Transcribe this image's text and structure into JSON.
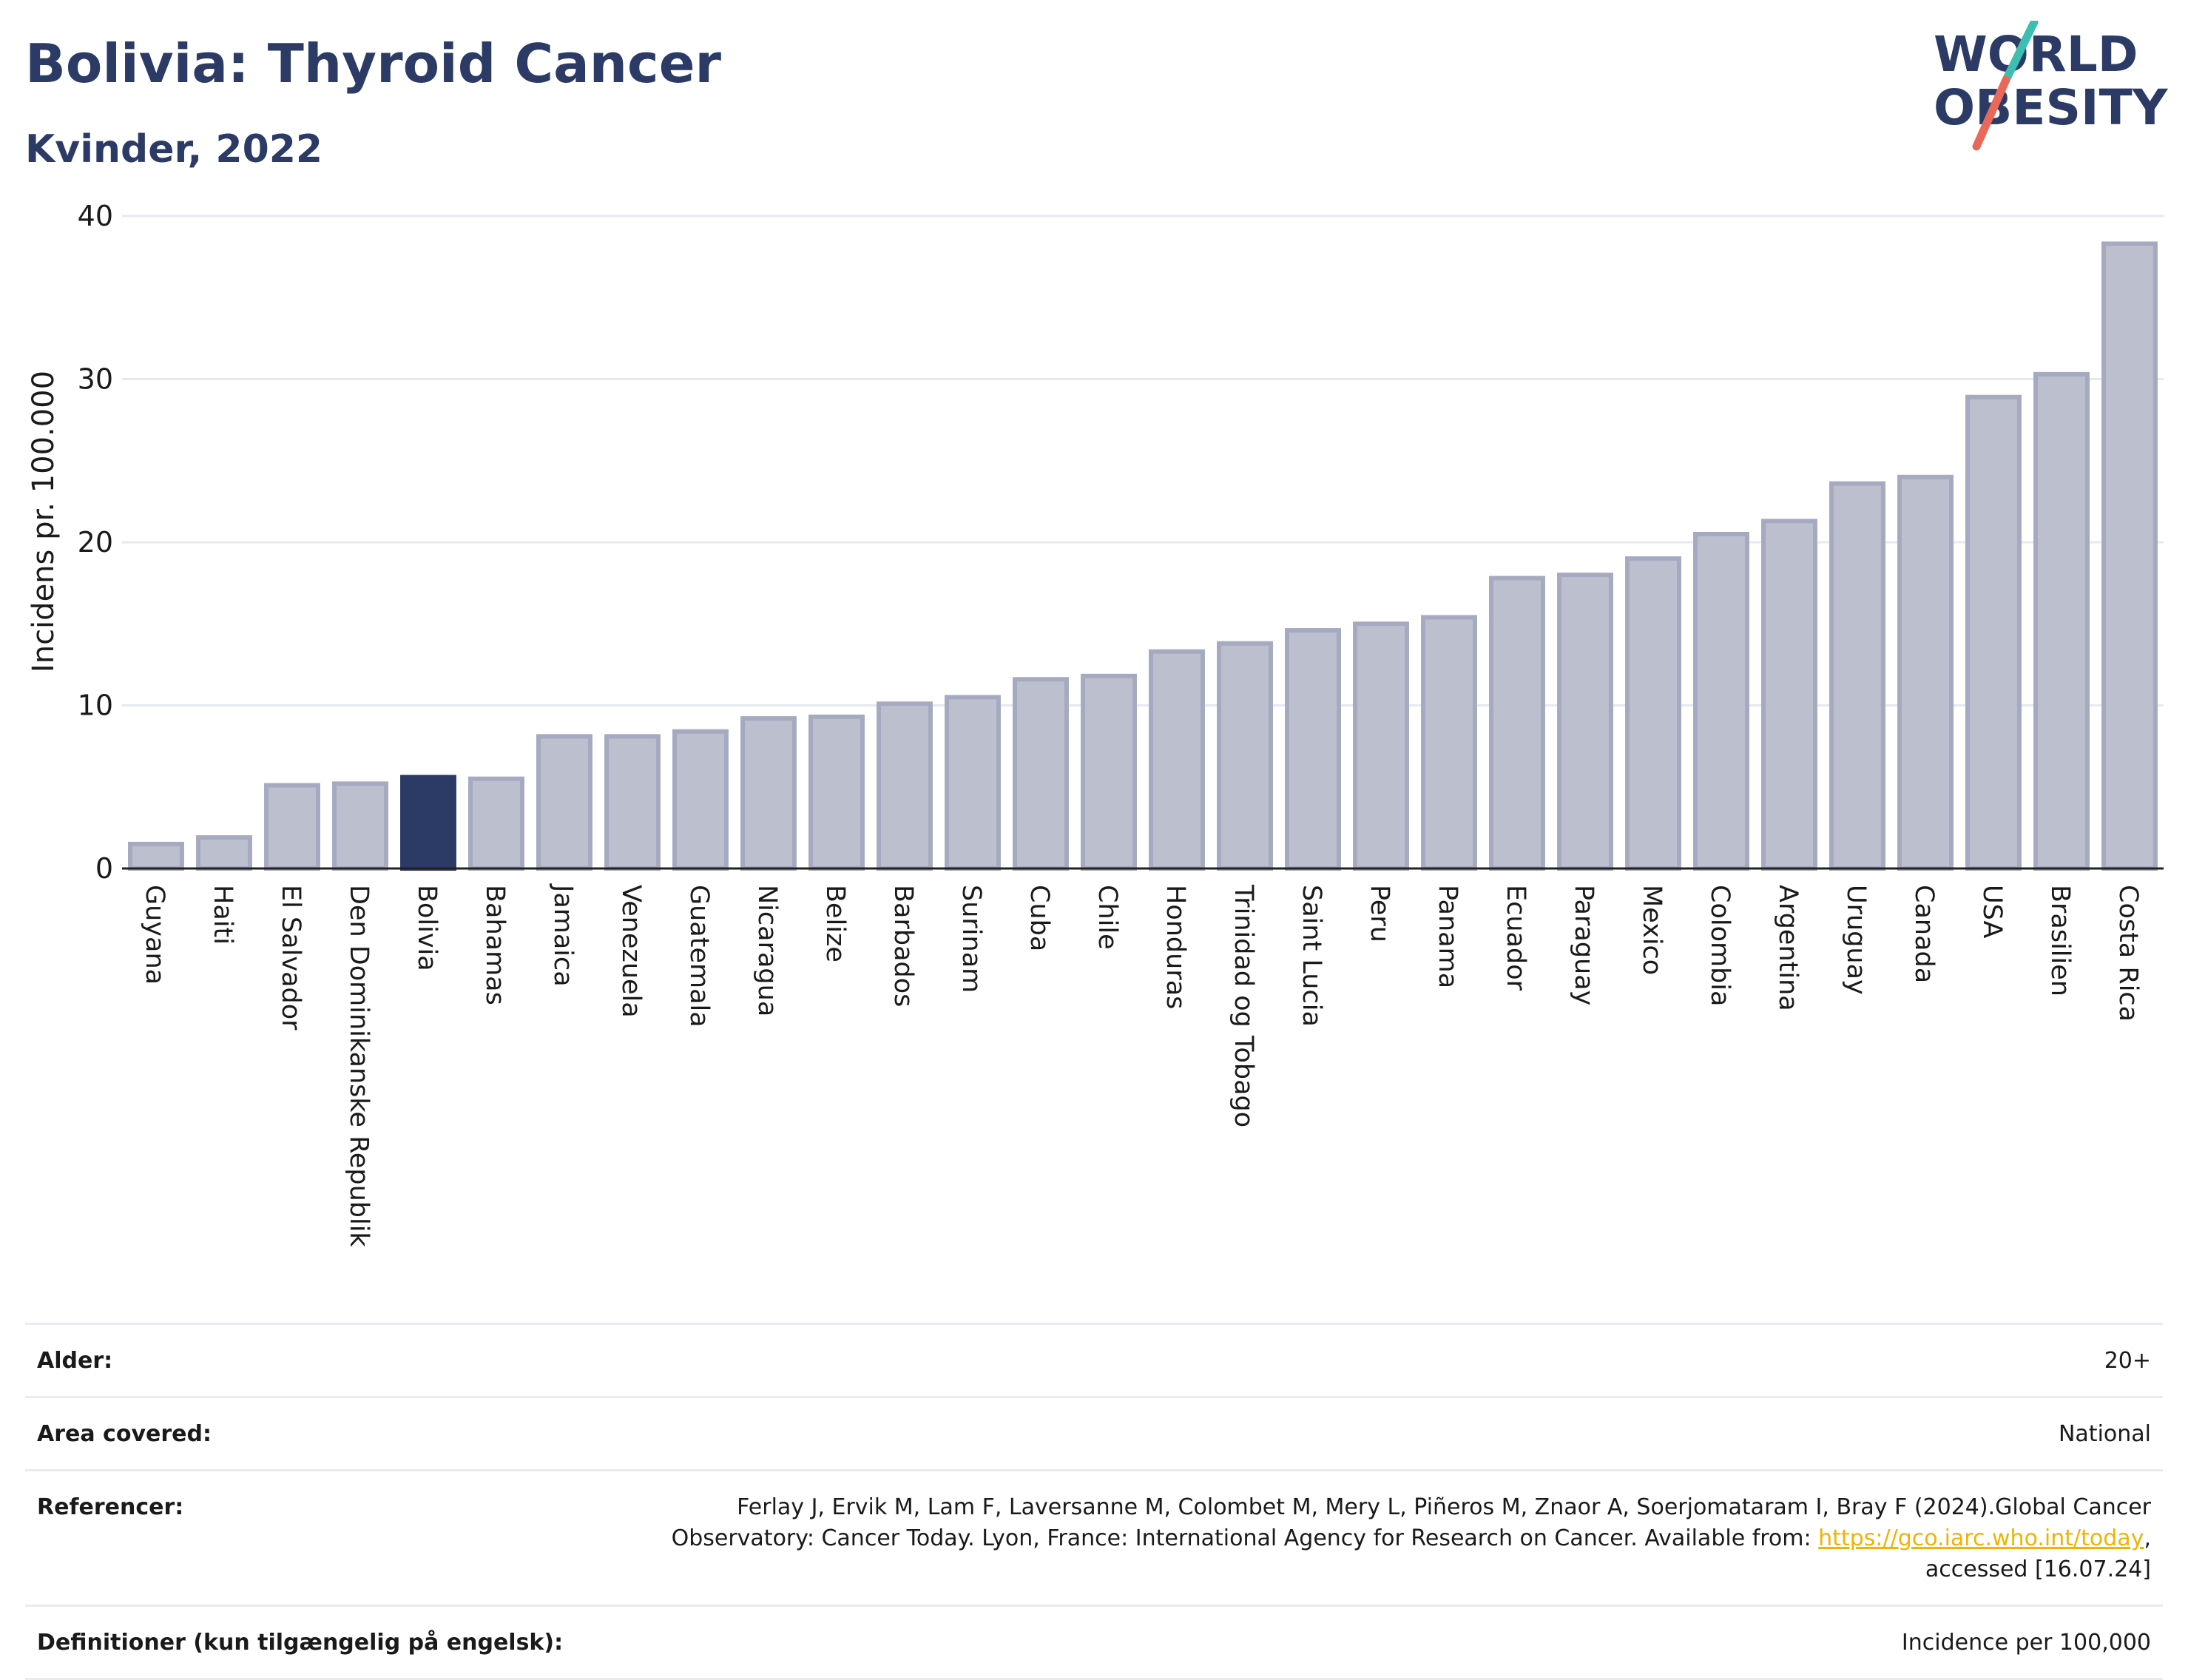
{
  "header": {
    "title": "Bolivia: Thyroid Cancer",
    "subtitle": "Kvinder, 2022"
  },
  "logo": {
    "line1": "WORLD",
    "line2": "OBESITY",
    "colors": {
      "text": "#2c3a66",
      "slash_top": "#3cbfb0",
      "slash_bottom": "#e8685a"
    }
  },
  "colors": {
    "bar": "#bcc0ce",
    "bar_stroke": "#a5aac0",
    "highlight": "#2c3a66",
    "grid": "#e6e9f0",
    "axis": "#222222",
    "title": "#2c3a66",
    "link": "#f0b400"
  },
  "chart_data": {
    "type": "bar",
    "title": "Bolivia: Thyroid Cancer",
    "subtitle": "Kvinder, 2022",
    "xlabel": "",
    "ylabel": "Incidens pr. 100.000",
    "ylim": [
      0,
      40
    ],
    "yticks": [
      0,
      10,
      20,
      30,
      40
    ],
    "grid": true,
    "highlight_category": "Bolivia",
    "categories": [
      "Guyana",
      "Haiti",
      "El Salvador",
      "Den Dominikanske Republik",
      "Bolivia",
      "Bahamas",
      "Jamaica",
      "Venezuela",
      "Guatemala",
      "Nicaragua",
      "Belize",
      "Barbados",
      "Surinam",
      "Cuba",
      "Chile",
      "Honduras",
      "Trinidad og Tobago",
      "Saint Lucia",
      "Peru",
      "Panama",
      "Ecuador",
      "Paraguay",
      "Mexico",
      "Colombia",
      "Argentina",
      "Uruguay",
      "Canada",
      "USA",
      "Brasilien",
      "Costa Rica"
    ],
    "values": [
      1.5,
      1.9,
      5.1,
      5.2,
      5.6,
      5.5,
      8.1,
      8.1,
      8.4,
      9.2,
      9.3,
      10.1,
      10.5,
      11.6,
      11.8,
      13.3,
      13.8,
      14.6,
      15.0,
      15.4,
      17.8,
      18.0,
      19.0,
      20.5,
      21.3,
      23.6,
      24.0,
      28.9,
      30.3,
      38.3
    ]
  },
  "info": {
    "rows": [
      {
        "label": "Alder:",
        "value": "20+"
      },
      {
        "label": "Area covered:",
        "value": "National"
      },
      {
        "label": "Referencer:",
        "value_before": "Ferlay J, Ervik M, Lam F, Laversanne M, Colombet M, Mery L, Piñeros M, Znaor A, Soerjomataram I, Bray F (2024).Global Cancer Observatory: Cancer Today. Lyon, France: International Agency for Research on Cancer. Available from: ",
        "link_text": "https://gco.iarc.who.int/today",
        "value_after": ", accessed [16.07.24]"
      },
      {
        "label": "Definitioner (kun tilgængelig på engelsk):",
        "value": "Incidence per 100,000"
      }
    ]
  }
}
